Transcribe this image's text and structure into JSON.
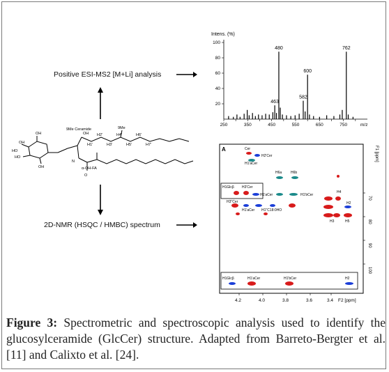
{
  "ms_label": "Positive ESI-MS2 [M+Li] analysis",
  "nmr_label": "2D-NMR (HSQC / HMBC) spectrum",
  "structure": {
    "title": "9Me Ceramide",
    "labels": [
      "OH",
      "HO",
      "HO",
      "OH",
      "OH",
      "NH",
      "OH",
      "H",
      "N",
      "O",
      "α-OH-FA",
      "9Me",
      "H1'",
      "H2'",
      "H3'",
      "H4'",
      "H5'",
      "H6'",
      "H7'"
    ]
  },
  "caption": {
    "prefix": "Figure 3:",
    "text": " Spectrometric and spectroscopic analysis used to identify the glucosylceramide (GlcCer) structure. Adapted from Barreto-Bergter et al. [11] and Calixto et al. [24]."
  },
  "ms_chart": {
    "chart_data": {
      "type": "bar",
      "ylabel": "Intens. (%)",
      "xlabel": "m/z",
      "xlim": [
        250,
        850
      ],
      "ylim": [
        0,
        100
      ],
      "xticks": [
        250,
        300,
        350,
        400,
        450,
        500,
        550,
        600,
        650,
        700,
        750,
        800
      ],
      "yticks": [
        20,
        40,
        60,
        80,
        100
      ],
      "peaks": [
        {
          "x": 270,
          "y": 4
        },
        {
          "x": 290,
          "y": 3
        },
        {
          "x": 305,
          "y": 6
        },
        {
          "x": 318,
          "y": 3
        },
        {
          "x": 335,
          "y": 7
        },
        {
          "x": 348,
          "y": 12
        },
        {
          "x": 356,
          "y": 5
        },
        {
          "x": 370,
          "y": 8
        },
        {
          "x": 382,
          "y": 4
        },
        {
          "x": 395,
          "y": 6
        },
        {
          "x": 410,
          "y": 5
        },
        {
          "x": 425,
          "y": 7
        },
        {
          "x": 440,
          "y": 6
        },
        {
          "x": 455,
          "y": 9
        },
        {
          "x": 463,
          "y": 18,
          "label": "463"
        },
        {
          "x": 470,
          "y": 8
        },
        {
          "x": 480,
          "y": 88,
          "label": "480"
        },
        {
          "x": 486,
          "y": 15
        },
        {
          "x": 495,
          "y": 6
        },
        {
          "x": 512,
          "y": 5
        },
        {
          "x": 530,
          "y": 4
        },
        {
          "x": 548,
          "y": 5
        },
        {
          "x": 565,
          "y": 7
        },
        {
          "x": 582,
          "y": 24,
          "label": "582"
        },
        {
          "x": 590,
          "y": 10
        },
        {
          "x": 600,
          "y": 58,
          "label": "600"
        },
        {
          "x": 608,
          "y": 6
        },
        {
          "x": 625,
          "y": 4
        },
        {
          "x": 650,
          "y": 3
        },
        {
          "x": 680,
          "y": 5
        },
        {
          "x": 710,
          "y": 4
        },
        {
          "x": 735,
          "y": 6
        },
        {
          "x": 745,
          "y": 12
        },
        {
          "x": 762,
          "y": 88,
          "label": "762"
        },
        {
          "x": 770,
          "y": 6
        },
        {
          "x": 790,
          "y": 3
        }
      ]
    }
  },
  "nmr": {
    "panel_letter": "A",
    "f1_label": "F1 [ppm]",
    "f2_label": "F2 [ppm]",
    "x_ticks": [
      "4.2",
      "4.0",
      "3.8",
      "3.6",
      "3.4"
    ],
    "y_ticks": [
      "70",
      "80",
      "90",
      "100"
    ],
    "peak_labels": [
      "Cer",
      "H2'Cer",
      "H1'aCer",
      "H6a",
      "H6b",
      "H1Glcβ",
      "H3'Cer",
      "H1'aCer",
      "H1'bCer",
      "H4",
      "H3''Cer",
      "H1'aCer",
      "H1''C18:0HO",
      "H2",
      "H3",
      "H5",
      "H1Glcβ",
      "H1'aCer",
      "H1'bCer",
      "H2"
    ]
  }
}
